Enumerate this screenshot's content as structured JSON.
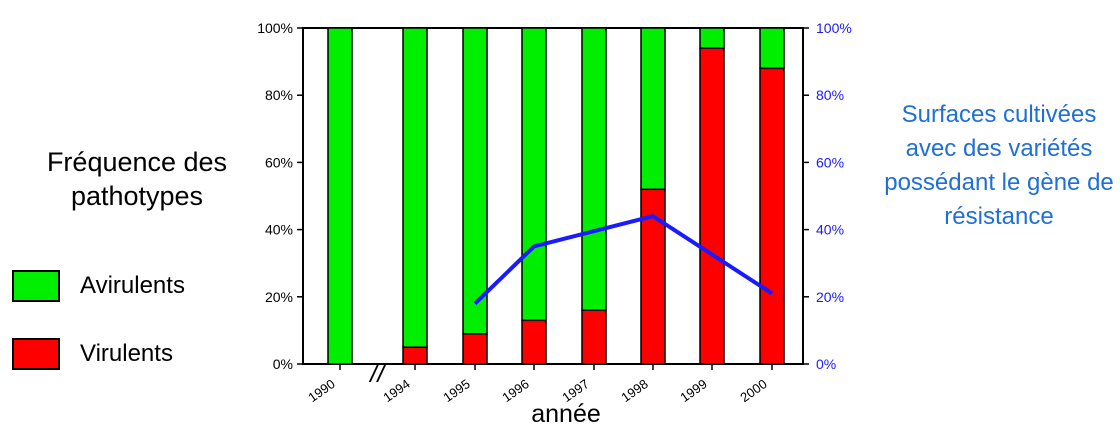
{
  "chart_data": {
    "type": "bar",
    "stacked": true,
    "categories": [
      "1990",
      "1994",
      "1995",
      "1996",
      "1997",
      "1998",
      "1999",
      "2000"
    ],
    "series": [
      {
        "name": "Virulents",
        "color": "#ff0000",
        "values": [
          0,
          5,
          9,
          13,
          16,
          52,
          94,
          88
        ]
      },
      {
        "name": "Avirulents",
        "color": "#00ee00",
        "values": [
          100,
          95,
          91,
          87,
          84,
          48,
          6,
          12
        ]
      }
    ],
    "line_series": {
      "color": "#1a1aff",
      "categories": [
        "1995",
        "1996",
        "1998",
        "2000"
      ],
      "values": [
        18,
        35,
        44,
        21
      ]
    },
    "ylim": [
      0,
      100
    ],
    "left_ticks": [
      "0%",
      "20%",
      "40%",
      "60%",
      "80%",
      "100%"
    ],
    "right_ticks": [
      "0%",
      "20%",
      "40%",
      "60%",
      "80%",
      "100%"
    ],
    "xlabel": "année",
    "ylabel_left": "Fréquence des pathotypes",
    "ylabel_right": "Surfaces cultivées avec des variétés possédant le gène de résistance",
    "axis_break_marker": "//",
    "legend_position": "bottom-left"
  },
  "legend": [
    {
      "label": "Avirulents",
      "color": "#00ee00"
    },
    {
      "label": "Virulents",
      "color": "#ff0000"
    }
  ]
}
